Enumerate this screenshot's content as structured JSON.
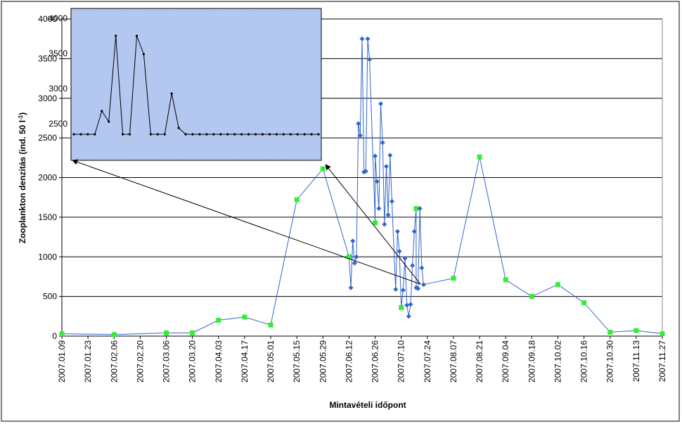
{
  "chart_data": {
    "type": "line",
    "xlabel": "Mintavételi időpont",
    "ylabel_main": "Zooplankton denzitás (ind. 50 l",
    "ylabel_sup": "-1",
    "ylabel_close": ")",
    "ylim": [
      0,
      4000
    ],
    "yticks": [
      0,
      500,
      1000,
      1500,
      2000,
      2500,
      3000,
      3500,
      4000
    ],
    "inset_yticks": [
      2500,
      3000,
      3500,
      4000
    ],
    "grid": true,
    "x_tick_labels": [
      "2007.01.09",
      "2007.01.23",
      "2007.02.06",
      "2007.02.20",
      "2007.03.06",
      "2007.03.20",
      "2007.04.03",
      "2007.04.17",
      "2007.05.01",
      "2007.05.15",
      "2007.05.29",
      "2007.06.12",
      "2007.06.26",
      "2007.07.10",
      "2007.07.24",
      "2007.08.07",
      "2007.08.21",
      "2007.09.04",
      "2007.09.18",
      "2007.10.02",
      "2007.10.16",
      "2007.10.30",
      "2007.11.13",
      "2007.11.27"
    ],
    "colors": {
      "line": "#3366cc",
      "green_marker": "#33ee33",
      "blue_marker": "#3366cc",
      "inset_line": "#000000",
      "inset_bg": "#a9c4ee"
    },
    "series": [
      {
        "marker": "green-square",
        "points": [
          {
            "x": "2007.01.09",
            "y": 30
          },
          {
            "x": "2007.02.06",
            "y": 20
          },
          {
            "x": "2007.03.06",
            "y": 40
          },
          {
            "x": "2007.03.20",
            "y": 40
          },
          {
            "x": "2007.04.03",
            "y": 200
          },
          {
            "x": "2007.04.17",
            "y": 240
          },
          {
            "x": "2007.05.01",
            "y": 140
          },
          {
            "x": "2007.05.15",
            "y": 1720
          },
          {
            "x": "2007.05.29",
            "y": 2110
          },
          {
            "x": "2007.06.12",
            "y": 1000
          },
          {
            "x": "2007.06.26",
            "y": 1430
          },
          {
            "x": "2007.07.10",
            "y": 360
          },
          {
            "x": "2007.07.18",
            "y": 1610
          },
          {
            "x": "2007.08.07",
            "y": 730
          },
          {
            "x": "2007.08.21",
            "y": 2260
          },
          {
            "x": "2007.09.04",
            "y": 710
          },
          {
            "x": "2007.09.18",
            "y": 500
          },
          {
            "x": "2007.10.02",
            "y": 650
          },
          {
            "x": "2007.10.16",
            "y": 420
          },
          {
            "x": "2007.10.30",
            "y": 50
          },
          {
            "x": "2007.11.13",
            "y": 70
          },
          {
            "x": "2007.11.27",
            "y": 30
          }
        ]
      },
      {
        "marker": "blue-diamond",
        "points": [
          {
            "x": "2007.06.13",
            "y": 610
          },
          {
            "x": "2007.06.14",
            "y": 1200
          },
          {
            "x": "2007.06.15",
            "y": 920
          },
          {
            "x": "2007.06.16",
            "y": 1000
          },
          {
            "x": "2007.06.17",
            "y": 2680
          },
          {
            "x": "2007.06.18",
            "y": 2530
          },
          {
            "x": "2007.06.19",
            "y": 3750
          },
          {
            "x": "2007.06.20",
            "y": 2070
          },
          {
            "x": "2007.06.21",
            "y": 2080
          },
          {
            "x": "2007.06.22",
            "y": 3750
          },
          {
            "x": "2007.06.23",
            "y": 3490
          },
          {
            "x": "2007.06.26",
            "y": 2270
          },
          {
            "x": "2007.06.27",
            "y": 1950
          },
          {
            "x": "2007.06.28",
            "y": 1610
          },
          {
            "x": "2007.06.29",
            "y": 2930
          },
          {
            "x": "2007.06.30",
            "y": 2440
          },
          {
            "x": "2007.07.01",
            "y": 1410
          },
          {
            "x": "2007.07.02",
            "y": 2140
          },
          {
            "x": "2007.07.03",
            "y": 1530
          },
          {
            "x": "2007.07.04",
            "y": 2280
          },
          {
            "x": "2007.07.05",
            "y": 1700
          },
          {
            "x": "2007.07.07",
            "y": 590
          },
          {
            "x": "2007.07.08",
            "y": 1320
          },
          {
            "x": "2007.07.09",
            "y": 1070
          },
          {
            "x": "2007.07.11",
            "y": 580
          },
          {
            "x": "2007.07.12",
            "y": 980
          },
          {
            "x": "2007.07.13",
            "y": 390
          },
          {
            "x": "2007.07.14",
            "y": 250
          },
          {
            "x": "2007.07.15",
            "y": 400
          },
          {
            "x": "2007.07.16",
            "y": 890
          },
          {
            "x": "2007.07.17",
            "y": 1320
          },
          {
            "x": "2007.07.18",
            "y": 610
          },
          {
            "x": "2007.07.19",
            "y": 600
          },
          {
            "x": "2007.07.20",
            "y": 1610
          },
          {
            "x": "2007.07.21",
            "y": 860
          },
          {
            "x": "2007.07.22",
            "y": 650
          }
        ]
      }
    ]
  }
}
